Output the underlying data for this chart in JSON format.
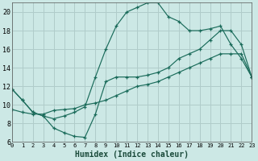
{
  "xlabel": "Humidex (Indice chaleur)",
  "bg_color": "#cce8e5",
  "grid_color": "#b0ccca",
  "line_color": "#1a6b5a",
  "xlim": [
    0,
    23
  ],
  "ylim": [
    6,
    21
  ],
  "yticks": [
    6,
    8,
    10,
    12,
    14,
    16,
    18,
    20
  ],
  "xticks": [
    0,
    1,
    2,
    3,
    4,
    5,
    6,
    7,
    8,
    9,
    10,
    11,
    12,
    13,
    14,
    15,
    16,
    17,
    18,
    19,
    20,
    21,
    22,
    23
  ],
  "line1_x": [
    0,
    1,
    2,
    3,
    4,
    5,
    6,
    7,
    8,
    9,
    10,
    11,
    12,
    13,
    14,
    15,
    16,
    17,
    18,
    19,
    20,
    21,
    22,
    23
  ],
  "line1_y": [
    11.7,
    10.5,
    9.2,
    8.8,
    8.5,
    8.8,
    9.2,
    9.8,
    13.0,
    16.0,
    18.5,
    20.0,
    20.5,
    21.0,
    21.0,
    19.5,
    19.0,
    18.0,
    18.0,
    18.2,
    18.5,
    16.5,
    15.0,
    13.0
  ],
  "line2_x": [
    0,
    1,
    2,
    3,
    4,
    5,
    6,
    7,
    8,
    9,
    10,
    11,
    12,
    13,
    14,
    15,
    16,
    17,
    18,
    19,
    20,
    21,
    22,
    23
  ],
  "line2_y": [
    11.7,
    10.5,
    9.2,
    8.8,
    7.5,
    7.0,
    6.6,
    6.5,
    9.0,
    12.5,
    13.0,
    13.0,
    13.0,
    13.2,
    13.5,
    14.0,
    15.0,
    15.5,
    16.0,
    17.0,
    18.0,
    18.0,
    16.5,
    13.0
  ],
  "line3_x": [
    0,
    1,
    2,
    3,
    4,
    5,
    6,
    7,
    8,
    9,
    10,
    11,
    12,
    13,
    14,
    15,
    16,
    17,
    18,
    19,
    20,
    21,
    22,
    23
  ],
  "line3_y": [
    9.5,
    9.2,
    9.0,
    9.0,
    9.4,
    9.5,
    9.6,
    10.0,
    10.2,
    10.5,
    11.0,
    11.5,
    12.0,
    12.2,
    12.5,
    13.0,
    13.5,
    14.0,
    14.5,
    15.0,
    15.5,
    15.5,
    15.5,
    13.0
  ]
}
